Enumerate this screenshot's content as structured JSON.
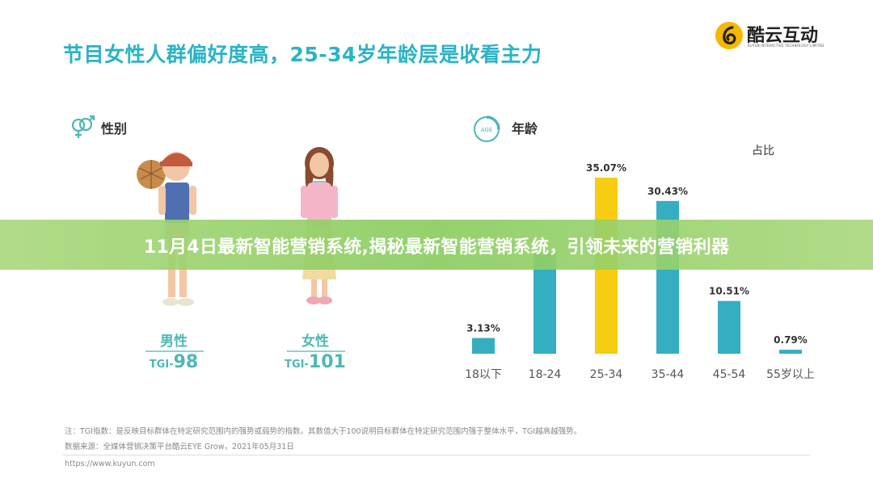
{
  "headline": "节目女性人群偏好度高，25-34岁年龄层是收看主力",
  "logo": {
    "name": "酷云互动",
    "sub": "KUYUN INTERACTIVE TECHNOLOGY LIMITED",
    "icon": "kuyun-logo-icon",
    "color": "#f5b800"
  },
  "gender": {
    "title": "性别",
    "icon": "gender-icon",
    "male": {
      "label": "男性",
      "tgi_prefix": "TGI-",
      "tgi_value": "98"
    },
    "female": {
      "label": "女性",
      "tgi_prefix": "TGI-",
      "tgi_value": "101"
    }
  },
  "age": {
    "title": "年龄",
    "icon": "age-icon",
    "icon_text": "AGE"
  },
  "chart_data": {
    "type": "bar",
    "ylabel": "占比",
    "categories": [
      "18以下",
      "18-24",
      "25-34",
      "35-44",
      "45-54",
      "55岁以上"
    ],
    "values": [
      3.13,
      20.0,
      35.07,
      30.43,
      10.51,
      0.79
    ],
    "labels": [
      "3.13%",
      "",
      "35.07%",
      "30.43%",
      "10.51%",
      "0.79%"
    ],
    "highlight_index": 2,
    "colors": {
      "bar": "#35aec2",
      "highlight": "#f7cc12"
    },
    "ylim": [
      0,
      37
    ]
  },
  "banner": "11月4日最新智能营销系统,揭秘最新智能营销系统，引领未来的营销利器",
  "footnotes": {
    "note": "注：TGI指数：是反映目标群体在特定研究范围内的强势或弱势的指数。其数值大于100说明目标群体在特定研究范围内强于整体水平，TGI越高越强势。",
    "source": "数据来源：全媒体营销决策平台酷云EYE Grow，2021年05月31日"
  },
  "url": "https://www.kuyun.com"
}
